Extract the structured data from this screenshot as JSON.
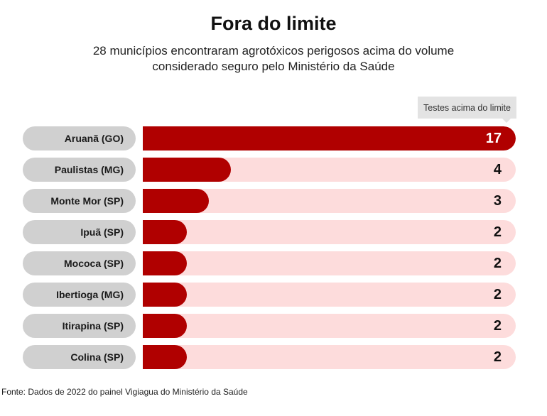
{
  "chart_data": {
    "type": "bar",
    "orientation": "horizontal",
    "title": "Fora do limite",
    "subtitle": "28 municípios encontraram agrotóxicos perigosos acima do volume considerado seguro pelo Ministério da Saúde",
    "value_label": "Testes acima do limite",
    "categories": [
      "Aruanã (GO)",
      "Paulistas (MG)",
      "Monte Mor (SP)",
      "Ipuã (SP)",
      "Mococa (SP)",
      "Ibertioga (MG)",
      "Itirapina (SP)",
      "Colina (SP)"
    ],
    "values": [
      17,
      4,
      3,
      2,
      2,
      2,
      2,
      2
    ],
    "xlim": [
      0,
      17
    ],
    "grid": false,
    "legend": "none",
    "colors": {
      "bar": "#b00000",
      "track": "#fddcdc",
      "label_pill": "#d0d0d0"
    }
  },
  "source": "Fonte: Dados de 2022 do painel Vigiagua do Ministério da Saúde"
}
